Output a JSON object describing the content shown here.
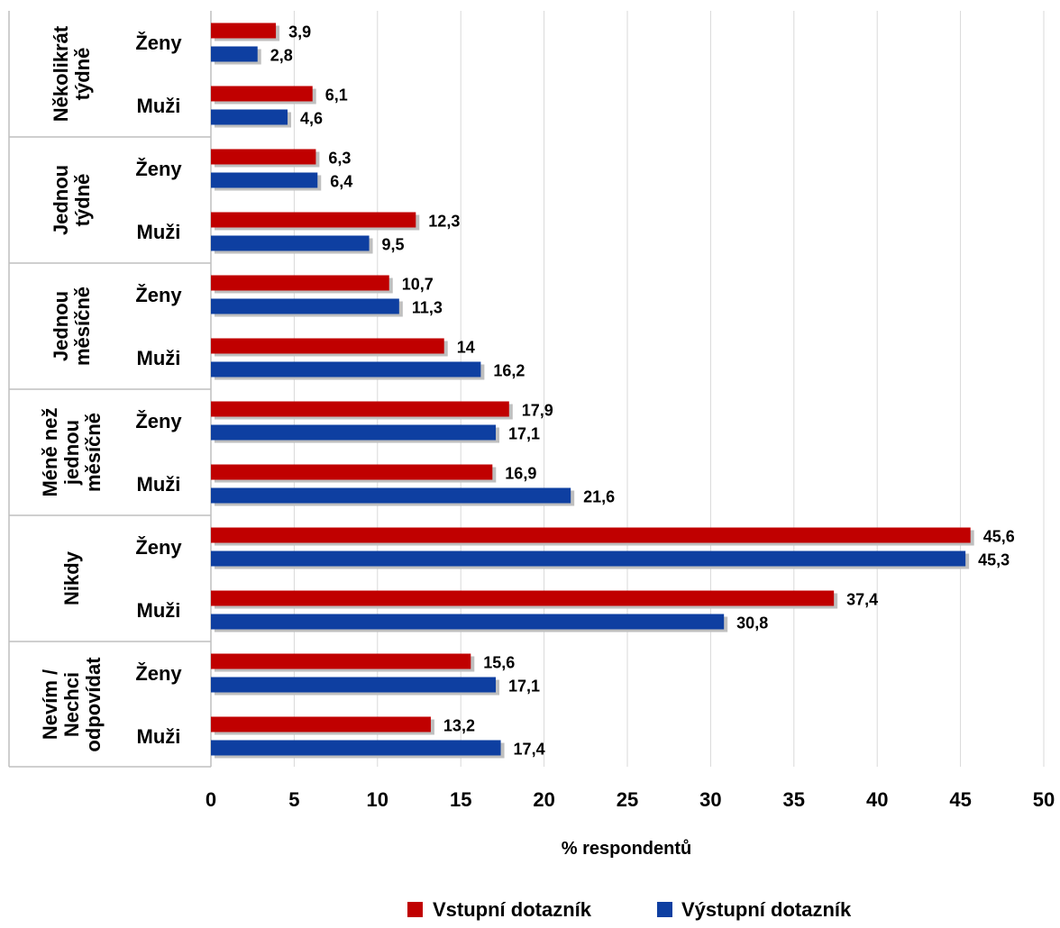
{
  "chart_data": {
    "type": "bar",
    "orientation": "horizontal",
    "groups": [
      {
        "label_lines": [
          "Několikrát",
          "týdně"
        ],
        "rows": [
          {
            "label": "Ženy",
            "values": [
              3.9,
              2.8
            ],
            "value_labels": [
              "3,9",
              "2,8"
            ]
          },
          {
            "label": "Muži",
            "values": [
              6.1,
              4.6
            ],
            "value_labels": [
              "6,1",
              "4,6"
            ]
          }
        ]
      },
      {
        "label_lines": [
          "Jednou",
          "týdně"
        ],
        "rows": [
          {
            "label": "Ženy",
            "values": [
              6.3,
              6.4
            ],
            "value_labels": [
              "6,3",
              "6,4"
            ]
          },
          {
            "label": "Muži",
            "values": [
              12.3,
              9.5
            ],
            "value_labels": [
              "12,3",
              "9,5"
            ]
          }
        ]
      },
      {
        "label_lines": [
          "Jednou",
          "měsíčně"
        ],
        "rows": [
          {
            "label": "Ženy",
            "values": [
              10.7,
              11.3
            ],
            "value_labels": [
              "10,7",
              "11,3"
            ]
          },
          {
            "label": "Muži",
            "values": [
              14,
              16.2
            ],
            "value_labels": [
              "14",
              "16,2"
            ]
          }
        ]
      },
      {
        "label_lines": [
          "Méně než",
          "jednou",
          "měsíčně"
        ],
        "rows": [
          {
            "label": "Ženy",
            "values": [
              17.9,
              17.1
            ],
            "value_labels": [
              "17,9",
              "17,1"
            ]
          },
          {
            "label": "Muži",
            "values": [
              16.9,
              21.6
            ],
            "value_labels": [
              "16,9",
              "21,6"
            ]
          }
        ]
      },
      {
        "label_lines": [
          "Nikdy"
        ],
        "rows": [
          {
            "label": "Ženy",
            "values": [
              45.6,
              45.3
            ],
            "value_labels": [
              "45,6",
              "45,3"
            ]
          },
          {
            "label": "Muži",
            "values": [
              37.4,
              30.8
            ],
            "value_labels": [
              "37,4",
              "30,8"
            ]
          }
        ]
      },
      {
        "label_lines": [
          "Nevím /",
          "Nechci",
          "odpovídat"
        ],
        "rows": [
          {
            "label": "Ženy",
            "values": [
              15.6,
              17.1
            ],
            "value_labels": [
              "15,6",
              "17,1"
            ]
          },
          {
            "label": "Muži",
            "values": [
              13.2,
              17.4
            ],
            "value_labels": [
              "13,2",
              "17,4"
            ]
          }
        ]
      }
    ],
    "series": [
      {
        "name": "Vstupní dotazník",
        "color": "#C00000"
      },
      {
        "name": "Výstupní dotazník",
        "color": "#0E3FA1"
      }
    ],
    "xlabel": "% respondentů",
    "xlim": [
      0,
      50
    ],
    "xticks": [
      "0",
      "5",
      "10",
      "15",
      "20",
      "25",
      "30",
      "35",
      "40",
      "45",
      "50"
    ],
    "grid": true,
    "legend_position": "bottom"
  }
}
